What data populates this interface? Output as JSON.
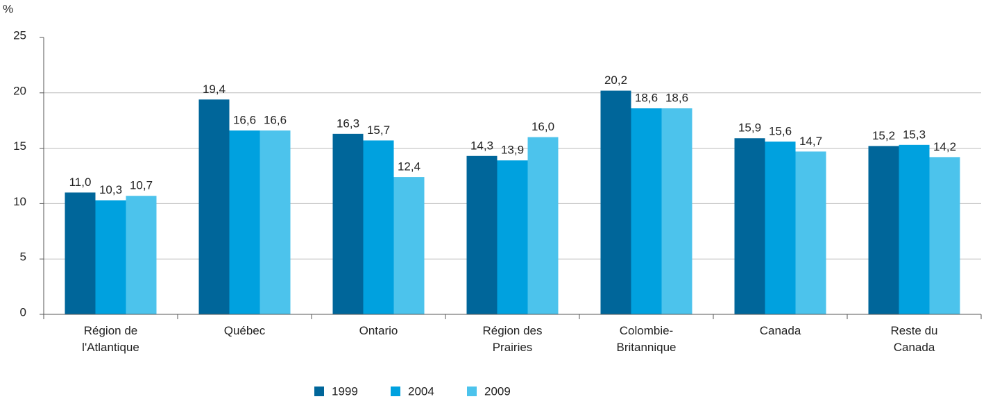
{
  "chart_data": {
    "type": "bar",
    "y_label": "%",
    "categories": [
      "Région de\nl'Atlantique",
      "Québec",
      "Ontario",
      "Région des\nPrairies",
      "Colombie-\nBritannique",
      "Canada",
      "Reste du\nCanada"
    ],
    "series": [
      {
        "name": "1999",
        "color": "#00669a",
        "values": [
          11.0,
          19.4,
          16.3,
          14.3,
          20.2,
          15.9,
          15.2
        ],
        "value_labels": [
          "11,0",
          "19,4",
          "16,3",
          "14,3",
          "20,2",
          "15,9",
          "15,2"
        ]
      },
      {
        "name": "2004",
        "color": "#00a1df",
        "values": [
          10.3,
          16.6,
          15.7,
          13.9,
          18.6,
          15.6,
          15.3
        ],
        "value_labels": [
          "10,3",
          "16,6",
          "15,7",
          "13,9",
          "18,6",
          "15,6",
          "15,3"
        ]
      },
      {
        "name": "2009",
        "color": "#4cc3ec",
        "values": [
          10.7,
          16.6,
          12.4,
          16.0,
          18.6,
          14.7,
          14.2
        ],
        "value_labels": [
          "10,7",
          "16,6",
          "12,4",
          "16,0",
          "18,6",
          "14,7",
          "14,2"
        ]
      }
    ],
    "ylim": [
      0,
      25
    ],
    "yticks": [
      0,
      5,
      10,
      15,
      20,
      25
    ],
    "grid": true,
    "legend": "bottom"
  }
}
